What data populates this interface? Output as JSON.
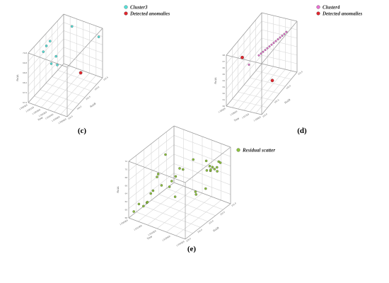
{
  "chart_data": [
    {
      "type": "scatter",
      "panel_label": "(c)",
      "axis_labels": {
        "x": "Time",
        "y": "Ro1A",
        "z": "Ro1B"
      },
      "z_ticks": [
        "70.8",
        "69.8",
        "68.8",
        "68.2",
        "67.6",
        "67.0"
      ],
      "x_ticks": [
        "1.5300E9",
        "1.5301E9",
        "1.5302E9",
        "1.5303E9",
        "1.5304E9",
        "1.5305E9",
        "1.5306E9"
      ],
      "y_ticks": [
        "102.5",
        "103.0",
        "103.5",
        "104.0",
        "104.5"
      ],
      "series": [
        {
          "name": "Cluster3",
          "color": "#55e0d8",
          "marker_size": 1.6,
          "points": [
            [
              0.15,
              0.35,
              0.97
            ],
            [
              0.02,
              0.92,
              0.82
            ],
            [
              0.55,
              0.15,
              0.93
            ],
            [
              0.62,
              0.12,
              0.88
            ],
            [
              0.85,
              0.25,
              0.98
            ],
            [
              0.9,
              0.5,
              0.85
            ],
            [
              0.6,
              0.35,
              0.72
            ],
            [
              0.95,
              0.7,
              0.92
            ]
          ]
        },
        {
          "name": "Detected anomalies",
          "color": "#e0262e",
          "marker_size": 2.2,
          "points": [
            [
              0.2,
              0.62,
              0.15
            ]
          ]
        }
      ]
    },
    {
      "type": "scatter",
      "panel_label": "(d)",
      "axis_labels": {
        "x": "Time",
        "y": "Ro1A",
        "z": "Ro1B"
      },
      "z_ticks": [
        "68",
        "67",
        "66",
        "65",
        "64",
        "63",
        "62",
        "61",
        "60"
      ],
      "x_ticks": [
        "1.535E9",
        "1.536E9",
        "1.537E9",
        "1.538E9"
      ],
      "y_ticks": [
        "101.5",
        "102.0",
        "102.5",
        "103.0"
      ],
      "series": [
        {
          "name": "Cluster4",
          "color": "#e86fd0",
          "marker_size": 1.3,
          "points": [
            [
              0.18,
              0.88,
              0.92
            ],
            [
              0.22,
              0.86,
              0.91
            ],
            [
              0.26,
              0.84,
              0.905
            ],
            [
              0.3,
              0.82,
              0.9
            ],
            [
              0.34,
              0.8,
              0.895
            ],
            [
              0.38,
              0.78,
              0.89
            ],
            [
              0.42,
              0.76,
              0.885
            ],
            [
              0.46,
              0.74,
              0.88
            ],
            [
              0.5,
              0.72,
              0.875
            ],
            [
              0.54,
              0.7,
              0.87
            ],
            [
              0.58,
              0.68,
              0.865
            ],
            [
              0.62,
              0.66,
              0.86
            ],
            [
              0.66,
              0.64,
              0.855
            ],
            [
              0.7,
              0.62,
              0.85
            ],
            [
              0.86,
              0.5,
              0.78
            ]
          ]
        },
        {
          "name": "Detected anomalies",
          "color": "#e0262e",
          "marker_size": 2.2,
          "points": [
            [
              0.95,
              0.4,
              0.98
            ],
            [
              0.4,
              0.7,
              0.12
            ]
          ]
        }
      ]
    },
    {
      "type": "scatter",
      "panel_label": "(e)",
      "axis_labels": {
        "x": "Time",
        "y": "Ro1A",
        "z": "Ro1B"
      },
      "z_ticks": [
        "72",
        "70",
        "68",
        "66",
        "64",
        "62",
        "60",
        "58"
      ],
      "x_ticks": [
        "1.5300E9",
        "1.5310E9",
        "1.5320E9",
        "1.5330E9",
        "1.5340E9"
      ],
      "y_ticks": [
        "101.0",
        "102.0",
        "103.0",
        "104.0",
        "105.0"
      ],
      "series": [
        {
          "name": "Residual scatter",
          "color": "#8cc23c",
          "marker_size": 1.6,
          "points": [
            [
              0.05,
              0.8,
              0.6
            ],
            [
              0.08,
              0.78,
              0.58
            ],
            [
              0.1,
              0.76,
              0.62
            ],
            [
              0.12,
              0.74,
              0.56
            ],
            [
              0.14,
              0.76,
              0.6
            ],
            [
              0.07,
              0.82,
              0.55
            ],
            [
              0.11,
              0.72,
              0.63
            ],
            [
              0.15,
              0.7,
              0.57
            ],
            [
              0.1,
              0.9,
              0.75
            ],
            [
              0.2,
              0.95,
              0.85
            ],
            [
              0.35,
              0.85,
              0.92
            ],
            [
              0.45,
              0.7,
              0.95
            ],
            [
              0.55,
              0.6,
              0.8
            ],
            [
              0.5,
              0.5,
              0.75
            ],
            [
              0.65,
              0.55,
              0.72
            ],
            [
              0.8,
              0.6,
              0.75
            ],
            [
              0.9,
              0.5,
              0.7
            ],
            [
              0.75,
              0.3,
              0.68
            ],
            [
              0.6,
              0.4,
              0.45
            ],
            [
              0.3,
              0.8,
              0.38
            ],
            [
              0.4,
              0.7,
              0.35
            ],
            [
              0.2,
              0.55,
              0.12
            ],
            [
              0.35,
              0.3,
              0.08
            ],
            [
              0.7,
              0.15,
              0.3
            ],
            [
              0.85,
              0.2,
              0.25
            ],
            [
              0.9,
              0.1,
              0.22
            ],
            [
              0.8,
              0.1,
              0.12
            ],
            [
              0.95,
              0.05,
              0.1
            ],
            [
              0.65,
              0.05,
              0.08
            ],
            [
              0.9,
              0.35,
              0.55
            ],
            [
              0.5,
              0.25,
              0.9
            ],
            [
              0.6,
              0.2,
              0.6
            ]
          ]
        }
      ]
    }
  ]
}
